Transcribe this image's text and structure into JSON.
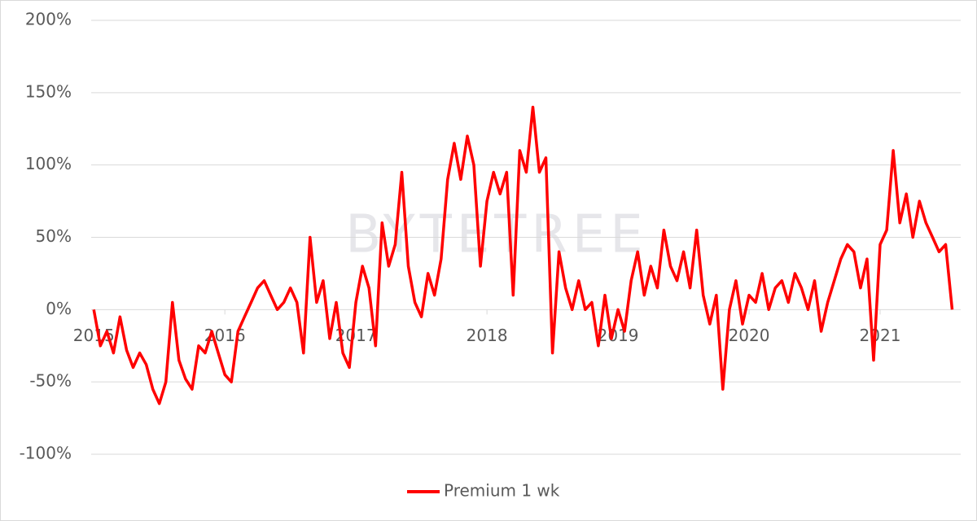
{
  "chart_data": {
    "type": "line",
    "watermark": "BYTETREE",
    "x": [
      2015.0,
      2015.05,
      2015.1,
      2015.15,
      2015.2,
      2015.25,
      2015.3,
      2015.35,
      2015.4,
      2015.45,
      2015.5,
      2015.55,
      2015.6,
      2015.65,
      2015.7,
      2015.75,
      2015.8,
      2015.85,
      2015.9,
      2015.95,
      2016.0,
      2016.05,
      2016.1,
      2016.15,
      2016.2,
      2016.25,
      2016.3,
      2016.35,
      2016.4,
      2016.45,
      2016.5,
      2016.55,
      2016.6,
      2016.65,
      2016.7,
      2016.75,
      2016.8,
      2016.85,
      2016.9,
      2016.95,
      2017.0,
      2017.05,
      2017.1,
      2017.15,
      2017.2,
      2017.25,
      2017.3,
      2017.35,
      2017.4,
      2017.45,
      2017.5,
      2017.55,
      2017.6,
      2017.65,
      2017.7,
      2017.75,
      2017.8,
      2017.85,
      2017.9,
      2017.95,
      2018.0,
      2018.05,
      2018.1,
      2018.15,
      2018.2,
      2018.25,
      2018.3,
      2018.35,
      2018.4,
      2018.45,
      2018.5,
      2018.55,
      2018.6,
      2018.65,
      2018.7,
      2018.75,
      2018.8,
      2018.85,
      2018.9,
      2018.95,
      2019.0,
      2019.05,
      2019.1,
      2019.15,
      2019.2,
      2019.25,
      2019.3,
      2019.35,
      2019.4,
      2019.45,
      2019.5,
      2019.55,
      2019.6,
      2019.65,
      2019.7,
      2019.75,
      2019.8,
      2019.85,
      2019.9,
      2019.95,
      2020.0,
      2020.05,
      2020.1,
      2020.15,
      2020.2,
      2020.25,
      2020.3,
      2020.35,
      2020.4,
      2020.45,
      2020.5,
      2020.55,
      2020.6,
      2020.65,
      2020.7,
      2020.75,
      2020.8,
      2020.85,
      2020.9,
      2020.95,
      2021.0,
      2021.05,
      2021.1,
      2021.15,
      2021.2,
      2021.25,
      2021.3,
      2021.35,
      2021.4,
      2021.45,
      2021.5,
      2021.55
    ],
    "series": [
      {
        "name": "Premium 1 wk",
        "color": "#ff0000",
        "values": [
          0,
          -25,
          -15,
          -30,
          -5,
          -28,
          -40,
          -30,
          -38,
          -55,
          -65,
          -50,
          5,
          -35,
          -48,
          -55,
          -25,
          -30,
          -15,
          -30,
          -45,
          -50,
          -15,
          -5,
          5,
          15,
          20,
          10,
          0,
          5,
          15,
          5,
          -30,
          50,
          5,
          20,
          -20,
          5,
          -30,
          -40,
          5,
          30,
          15,
          -25,
          60,
          30,
          45,
          95,
          30,
          5,
          -5,
          25,
          10,
          35,
          90,
          115,
          90,
          120,
          100,
          30,
          75,
          95,
          80,
          95,
          10,
          110,
          95,
          140,
          95,
          105,
          -30,
          40,
          15,
          0,
          20,
          0,
          5,
          -25,
          10,
          -20,
          0,
          -15,
          20,
          40,
          10,
          30,
          15,
          55,
          30,
          20,
          40,
          15,
          55,
          10,
          -10,
          10,
          -55,
          0,
          20,
          -10,
          10,
          5,
          25,
          0,
          15,
          20,
          5,
          25,
          15,
          0,
          20,
          -15,
          5,
          20,
          35,
          45,
          40,
          15,
          35,
          -35,
          45,
          55,
          110,
          60,
          80,
          50,
          75,
          60,
          50,
          40,
          45,
          0
        ]
      }
    ],
    "xlim": [
      2014.98,
      2021.615
    ],
    "xticks": [
      2015,
      2016,
      2017,
      2018,
      2019,
      2020,
      2021
    ],
    "ylim": [
      -100,
      200
    ],
    "yticks": [
      {
        "value": -100,
        "label": "-100%"
      },
      {
        "value": -50,
        "label": "-50%"
      },
      {
        "value": 0,
        "label": "0%"
      },
      {
        "value": 50,
        "label": "50%"
      },
      {
        "value": 100,
        "label": "100%"
      },
      {
        "value": 150,
        "label": "150%"
      },
      {
        "value": 200,
        "label": "200%"
      }
    ],
    "grid": true,
    "legend": "bottom"
  }
}
